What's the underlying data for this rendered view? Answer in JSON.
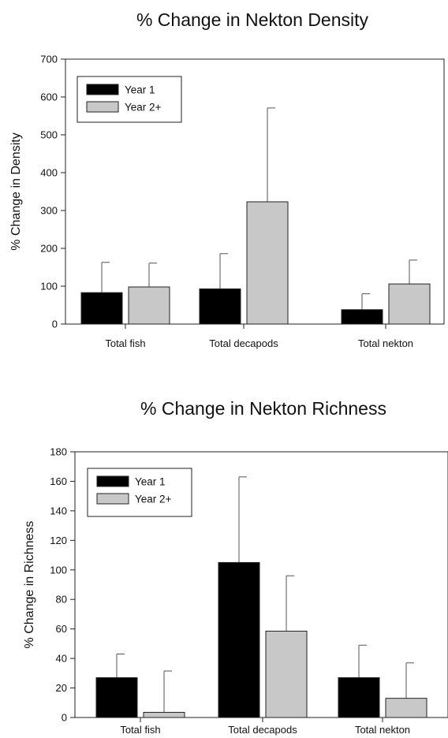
{
  "colors": {
    "year1": "#000000",
    "year2": "#c8c8c8"
  },
  "chart_data": [
    {
      "type": "bar",
      "title": "% Change in Nekton Density",
      "xlabel": "",
      "ylabel": "% Change in Density",
      "ylim": [
        0,
        700
      ],
      "yticks": [
        "0",
        "100",
        "200",
        "300",
        "400",
        "500",
        "600",
        "700"
      ],
      "categories": [
        "Total fish",
        "Total decapods",
        "Total nekton"
      ],
      "series": [
        {
          "name": "Year 1",
          "color": "#000000",
          "values": [
            83,
            93,
            38
          ],
          "error": [
            80,
            93,
            42
          ]
        },
        {
          "name": "Year 2+",
          "color": "#c8c8c8",
          "values": [
            98,
            323,
            106
          ],
          "error": [
            63,
            248,
            63
          ]
        }
      ],
      "legend": "top-left",
      "grid": false
    },
    {
      "type": "bar",
      "title": "% Change in Nekton Richness",
      "xlabel": "",
      "ylabel": "% Change in Richness",
      "ylim": [
        0,
        180
      ],
      "yticks": [
        "0",
        "20",
        "40",
        "60",
        "80",
        "100",
        "120",
        "140",
        "160",
        "180"
      ],
      "categories": [
        "Total fish",
        "Total decapods",
        "Total nekton"
      ],
      "series": [
        {
          "name": "Year 1",
          "color": "#000000",
          "values": [
            27,
            105,
            27
          ],
          "error": [
            16,
            58,
            22
          ]
        },
        {
          "name": "Year 2+",
          "color": "#c8c8c8",
          "values": [
            3.5,
            58.5,
            13
          ],
          "error": [
            28,
            37.5,
            24
          ]
        }
      ],
      "legend": "top-left",
      "grid": false
    }
  ]
}
